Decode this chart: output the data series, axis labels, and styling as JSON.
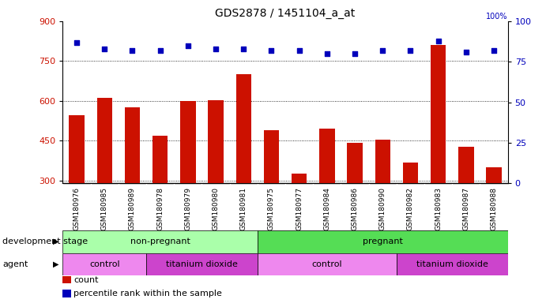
{
  "title": "GDS2878 / 1451104_a_at",
  "samples": [
    "GSM180976",
    "GSM180985",
    "GSM180989",
    "GSM180978",
    "GSM180979",
    "GSM180980",
    "GSM180981",
    "GSM180975",
    "GSM180977",
    "GSM180984",
    "GSM180986",
    "GSM180990",
    "GSM180982",
    "GSM180983",
    "GSM180987",
    "GSM180988"
  ],
  "counts": [
    545,
    612,
    575,
    468,
    600,
    602,
    700,
    490,
    328,
    497,
    443,
    455,
    368,
    810,
    428,
    350
  ],
  "percentiles": [
    87,
    83,
    82,
    82,
    85,
    83,
    83,
    82,
    82,
    80,
    80,
    82,
    82,
    88,
    81,
    82
  ],
  "bar_color": "#cc1100",
  "dot_color": "#0000bb",
  "ylim_left": [
    290,
    900
  ],
  "ylim_right": [
    0,
    100
  ],
  "yticks_left": [
    300,
    450,
    600,
    750,
    900
  ],
  "yticks_right": [
    0,
    25,
    50,
    75,
    100
  ],
  "grid_values": [
    300,
    450,
    600,
    750
  ],
  "development_stage_groups": [
    {
      "label": "non-pregnant",
      "start": 0,
      "end": 7,
      "color": "#aaeea a"
    },
    {
      "label": "pregnant",
      "start": 7,
      "end": 16,
      "color": "#55dd55"
    }
  ],
  "agent_groups": [
    {
      "label": "control",
      "start": 0,
      "end": 3,
      "color": "#ee88ee"
    },
    {
      "label": "titanium dioxide",
      "start": 3,
      "end": 7,
      "color": "#cc44cc"
    },
    {
      "label": "control",
      "start": 7,
      "end": 12,
      "color": "#ee88ee"
    },
    {
      "label": "titanium dioxide",
      "start": 12,
      "end": 16,
      "color": "#cc44cc"
    }
  ],
  "dev_colors": [
    "#aaffaa",
    "#55dd55"
  ],
  "agent_colors_light": "#ee88ee",
  "agent_colors_dark": "#cc44cc",
  "legend_count_color": "#cc1100",
  "legend_dot_color": "#0000bb",
  "background_color": "#ffffff",
  "tick_area_color": "#cccccc"
}
